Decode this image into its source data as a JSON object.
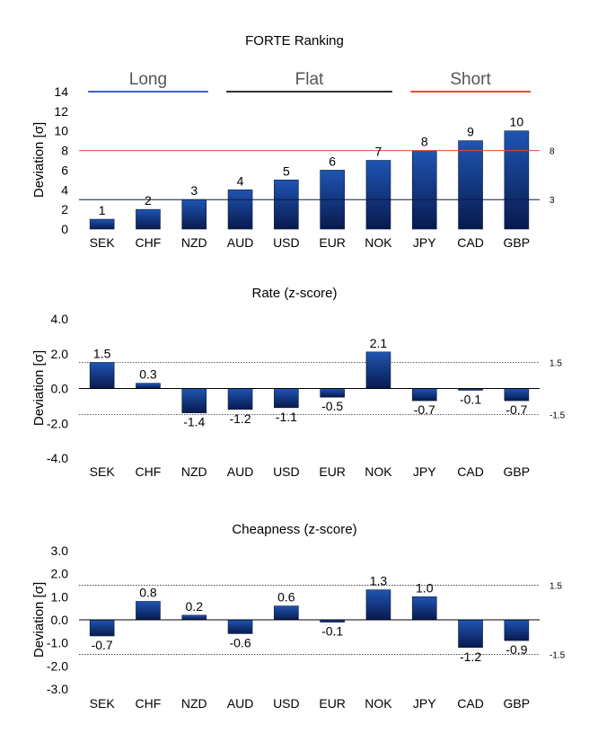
{
  "chart_data": [
    {
      "type": "bar",
      "title": "FORTE Ranking",
      "ylabel": "Deviation [σ]",
      "xlabel": "",
      "categories": [
        "SEK",
        "CHF",
        "NZD",
        "AUD",
        "USD",
        "EUR",
        "NOK",
        "JPY",
        "CAD",
        "GBP"
      ],
      "values": [
        1,
        2,
        3,
        4,
        5,
        6,
        7,
        8,
        9,
        10
      ],
      "data_labels": [
        "1",
        "2",
        "3",
        "4",
        "5",
        "6",
        "7",
        "8",
        "9",
        "10"
      ],
      "ylim": [
        0,
        14
      ],
      "yticks": [
        0,
        2,
        4,
        6,
        8,
        10,
        12,
        14
      ],
      "ytick_labels": [
        "0",
        "2",
        "4",
        "6",
        "8",
        "10",
        "12",
        "14"
      ],
      "reference_lines": [
        {
          "value": 8,
          "label": "8",
          "color": "#d9502e",
          "style": "solid"
        },
        {
          "value": 3,
          "label": "3",
          "color": "#0a1a3a",
          "style": "solid"
        }
      ],
      "groups": [
        {
          "label": "Long",
          "color": "#3a64c8",
          "from_index": 0,
          "to_index": 2
        },
        {
          "label": "Flat",
          "color": "#333333",
          "from_index": 3,
          "to_index": 6
        },
        {
          "label": "Short",
          "color": "#e4502e",
          "from_index": 7,
          "to_index": 9
        }
      ]
    },
    {
      "type": "bar",
      "title": "Rate (z-score)",
      "ylabel": "Deviation [σ]",
      "xlabel": "",
      "categories": [
        "SEK",
        "CHF",
        "NZD",
        "AUD",
        "USD",
        "EUR",
        "NOK",
        "JPY",
        "CAD",
        "GBP"
      ],
      "values": [
        1.5,
        0.3,
        -1.4,
        -1.2,
        -1.1,
        -0.5,
        2.1,
        -0.7,
        -0.1,
        -0.7
      ],
      "data_labels": [
        "1.5",
        "0.3",
        "-1.4",
        "-1.2",
        "-1.1",
        "-0.5",
        "2.1",
        "-0.7",
        "-0.1",
        "-0.7"
      ],
      "ylim": [
        -4,
        4
      ],
      "yticks": [
        -4,
        -2,
        0,
        2,
        4
      ],
      "ytick_labels": [
        "-4.0",
        "-2.0",
        "0.0",
        "2.0",
        "4.0"
      ],
      "reference_lines": [
        {
          "value": 1.5,
          "label": "1.5",
          "color": "#444444",
          "style": "dotted"
        },
        {
          "value": -1.5,
          "label": "-1.5",
          "color": "#444444",
          "style": "dotted"
        }
      ]
    },
    {
      "type": "bar",
      "title": "Cheapness (z-score)",
      "ylabel": "Deviation [σ]",
      "xlabel": "",
      "categories": [
        "SEK",
        "CHF",
        "NZD",
        "AUD",
        "USD",
        "EUR",
        "NOK",
        "JPY",
        "CAD",
        "GBP"
      ],
      "values": [
        -0.7,
        0.8,
        0.2,
        -0.6,
        0.6,
        -0.1,
        1.3,
        1.0,
        -1.2,
        -0.9
      ],
      "data_labels": [
        "-0.7",
        "0.8",
        "0.2",
        "-0.6",
        "0.6",
        "-0.1",
        "1.3",
        "1.0",
        "-1.2",
        "-0.9"
      ],
      "ylim": [
        -3,
        3
      ],
      "yticks": [
        -3,
        -2,
        -1,
        0,
        1,
        2,
        3
      ],
      "ytick_labels": [
        "-3.0",
        "-2.0",
        "-1.0",
        "0.0",
        "1.0",
        "2.0",
        "3.0"
      ],
      "reference_lines": [
        {
          "value": 1.5,
          "label": "1.5",
          "color": "#444444",
          "style": "dotted"
        },
        {
          "value": -1.5,
          "label": "-1.5",
          "color": "#444444",
          "style": "dotted"
        }
      ]
    }
  ],
  "colors": {
    "bar_top": "#1f55b3",
    "bar_bottom": "#081a4e",
    "bar_stroke": "#0a1a3a",
    "zero_line": "#000000"
  }
}
